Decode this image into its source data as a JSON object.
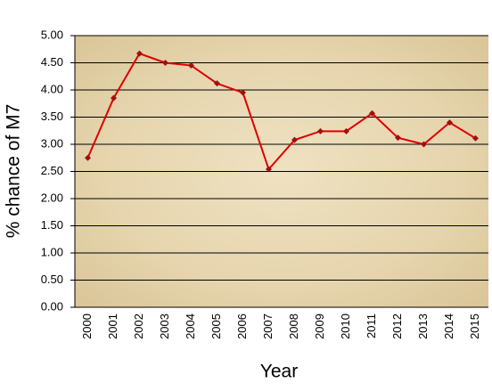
{
  "chart_data": {
    "type": "line",
    "x_label": "Year",
    "y_label": "% chance of M7",
    "categories": [
      "2000",
      "2001",
      "2002",
      "2003",
      "2004",
      "2005",
      "2006",
      "2007",
      "2008",
      "2009",
      "2010",
      "2011",
      "2012",
      "2013",
      "2014",
      "2015"
    ],
    "series": [
      {
        "name": "% chance of M7",
        "color": "#e00000",
        "marker_color": "#a01010",
        "values": [
          2.75,
          3.85,
          4.67,
          4.5,
          4.45,
          4.12,
          3.95,
          2.54,
          3.08,
          3.24,
          3.24,
          3.57,
          3.12,
          3.0,
          3.4,
          3.11
        ]
      }
    ],
    "ylim": [
      0,
      5
    ],
    "yticks": [
      {
        "value": 0,
        "label": "0.00"
      },
      {
        "value": 0.5,
        "label": "0.50"
      },
      {
        "value": 1,
        "label": "1.00"
      },
      {
        "value": 1.5,
        "label": "1.50"
      },
      {
        "value": 2,
        "label": "2.00"
      },
      {
        "value": 2.5,
        "label": "2.50"
      },
      {
        "value": 3,
        "label": "3.00"
      },
      {
        "value": 3.5,
        "label": "3.50"
      },
      {
        "value": 4,
        "label": "4.00"
      },
      {
        "value": 4.5,
        "label": "4.50"
      },
      {
        "value": 5,
        "label": "5.00"
      }
    ],
    "grid": true
  }
}
